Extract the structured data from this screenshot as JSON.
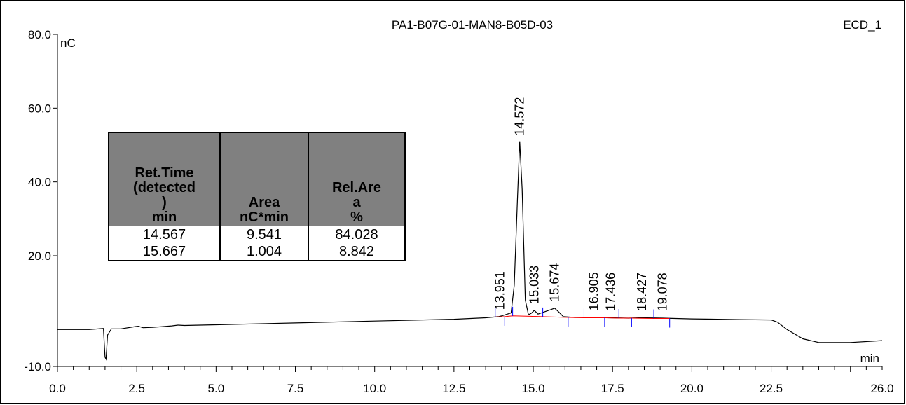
{
  "chart_data": {
    "type": "line",
    "title": "PA1-B07G-01-MAN8-B05D-03",
    "channel": "ECD_1",
    "xlabel": "min",
    "ylabel": "nC",
    "xlim": [
      0.0,
      26.0
    ],
    "ylim": [
      -10.0,
      80.0
    ],
    "x_ticks": [
      "0.0",
      "2.5",
      "5.0",
      "7.5",
      "10.0",
      "12.5",
      "15.0",
      "17.5",
      "20.0",
      "22.5",
      "26.0"
    ],
    "x_tick_values": [
      0.0,
      2.5,
      5.0,
      7.5,
      10.0,
      12.5,
      15.0,
      17.5,
      20.0,
      22.5,
      26.0
    ],
    "y_ticks": [
      "80.0",
      "60.0",
      "40.0",
      "20.0",
      "-10.0"
    ],
    "y_tick_values": [
      80.0,
      60.0,
      40.0,
      20.0,
      -10.0
    ],
    "grid": false,
    "series": [
      {
        "color": "#000000",
        "x": [
          0.0,
          1.0,
          1.45,
          1.5,
          1.53,
          1.58,
          1.7,
          2.0,
          2.45,
          2.55,
          2.7,
          3.0,
          3.6,
          3.8,
          4.0,
          5.0,
          7.5,
          10.0,
          12.5,
          13.5,
          13.9,
          14.0,
          14.3,
          14.4,
          14.5,
          14.572,
          14.65,
          14.75,
          14.85,
          14.95,
          15.033,
          15.15,
          15.35,
          15.55,
          15.674,
          15.8,
          15.95,
          16.3,
          16.905,
          17.436,
          18.0,
          18.427,
          19.078,
          20.0,
          21.5,
          22.5,
          22.7,
          23.0,
          23.5,
          24.0,
          25.0,
          26.0
        ],
        "y": [
          0.0,
          0.0,
          0.3,
          -7.5,
          -8.0,
          -1.5,
          0.2,
          0.2,
          0.8,
          0.9,
          0.5,
          0.6,
          1.0,
          1.2,
          1.1,
          1.3,
          1.8,
          2.3,
          2.8,
          3.2,
          3.5,
          3.7,
          4.5,
          12.0,
          35.0,
          51.0,
          38.0,
          8.0,
          4.0,
          4.5,
          5.2,
          4.2,
          4.8,
          5.4,
          5.8,
          4.8,
          3.5,
          3.3,
          3.3,
          3.2,
          3.1,
          3.2,
          3.1,
          2.9,
          2.7,
          2.6,
          2.0,
          0.0,
          -2.5,
          -3.5,
          -3.5,
          -3.0
        ]
      },
      {
        "color": "#ff0000",
        "x": [
          13.8,
          14.1,
          14.35,
          14.9,
          15.3,
          16.1,
          16.6,
          17.25,
          17.7,
          18.1,
          18.8,
          19.3
        ],
        "y": [
          3.4,
          3.5,
          3.7,
          3.6,
          3.5,
          3.3,
          3.2,
          3.2,
          3.1,
          3.1,
          3.0,
          3.0
        ]
      }
    ],
    "peak_labels": [
      {
        "x": 13.951,
        "y": 3.8,
        "text": "13.951"
      },
      {
        "x": 14.572,
        "y": 51.0,
        "text": "14.572"
      },
      {
        "x": 15.033,
        "y": 5.4,
        "text": "15.033"
      },
      {
        "x": 15.674,
        "y": 6.0,
        "text": "15.674"
      },
      {
        "x": 16.905,
        "y": 3.6,
        "text": "16.905"
      },
      {
        "x": 17.436,
        "y": 3.5,
        "text": "17.436"
      },
      {
        "x": 18.427,
        "y": 3.5,
        "text": "18.427"
      },
      {
        "x": 19.078,
        "y": 3.4,
        "text": "19.078"
      }
    ],
    "integration_markers": [
      13.8,
      14.1,
      14.35,
      14.9,
      15.3,
      16.1,
      16.6,
      17.25,
      17.7,
      18.1,
      18.8,
      19.3
    ],
    "results_table": {
      "headers": [
        "Ret.Time\n(detected\n)\nmin",
        "Area\nnC*min",
        "Rel.Are\na\n%"
      ],
      "rows": [
        [
          "14.567",
          "9.541",
          "84.028"
        ],
        [
          "15.667",
          "1.004",
          "8.842"
        ]
      ]
    },
    "colors": {
      "trace": "#000000",
      "baseline": "#ff0000",
      "markers": "#0000ff",
      "table_header": "#808080"
    }
  }
}
